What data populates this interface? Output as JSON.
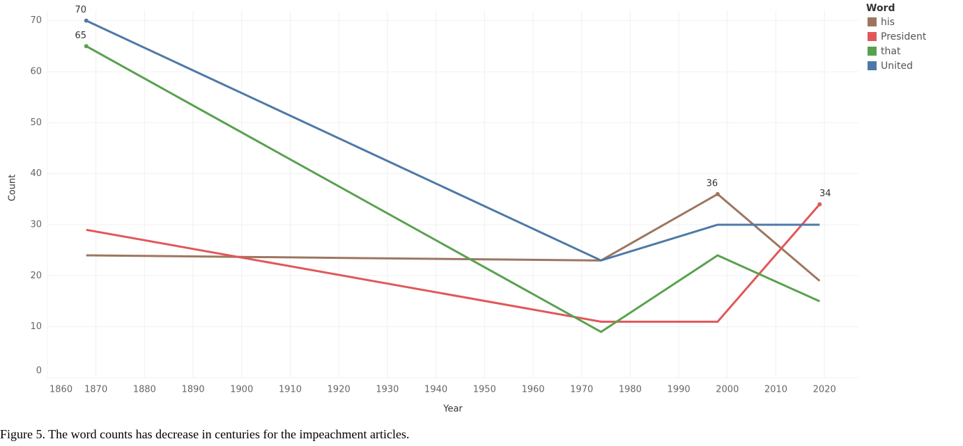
{
  "chart_data": {
    "type": "line",
    "x_label": "Year",
    "y_label": "Count",
    "x": [
      1868,
      1974,
      1998,
      2019
    ],
    "series": [
      {
        "name": "his",
        "color": "#9c7660",
        "values": [
          24,
          23,
          36,
          19
        ],
        "value_labels": [
          null,
          null,
          "36",
          null
        ]
      },
      {
        "name": "President",
        "color": "#e15759",
        "values": [
          29,
          11,
          11,
          34
        ],
        "value_labels": [
          null,
          null,
          null,
          "34"
        ]
      },
      {
        "name": "that",
        "color": "#59a14f",
        "values": [
          65,
          9,
          24,
          15
        ],
        "value_labels": [
          "65",
          null,
          null,
          null
        ]
      },
      {
        "name": "United",
        "color": "#4e79a7",
        "values": [
          70,
          23,
          30,
          30
        ],
        "value_labels": [
          "70",
          null,
          null,
          null
        ]
      }
    ],
    "legend_title": "Word",
    "xlim": [
      1860,
      2027
    ],
    "xticks": [
      1860,
      1870,
      1880,
      1890,
      1900,
      1910,
      1920,
      1930,
      1940,
      1950,
      1960,
      1970,
      1980,
      1990,
      2000,
      2010,
      2020
    ],
    "ylim": [
      0,
      72
    ],
    "yticks": [
      0,
      10,
      20,
      30,
      40,
      50,
      60,
      70
    ],
    "grid": true
  },
  "caption": "Figure 5. The word counts has decrease in centuries for the impeachment articles."
}
